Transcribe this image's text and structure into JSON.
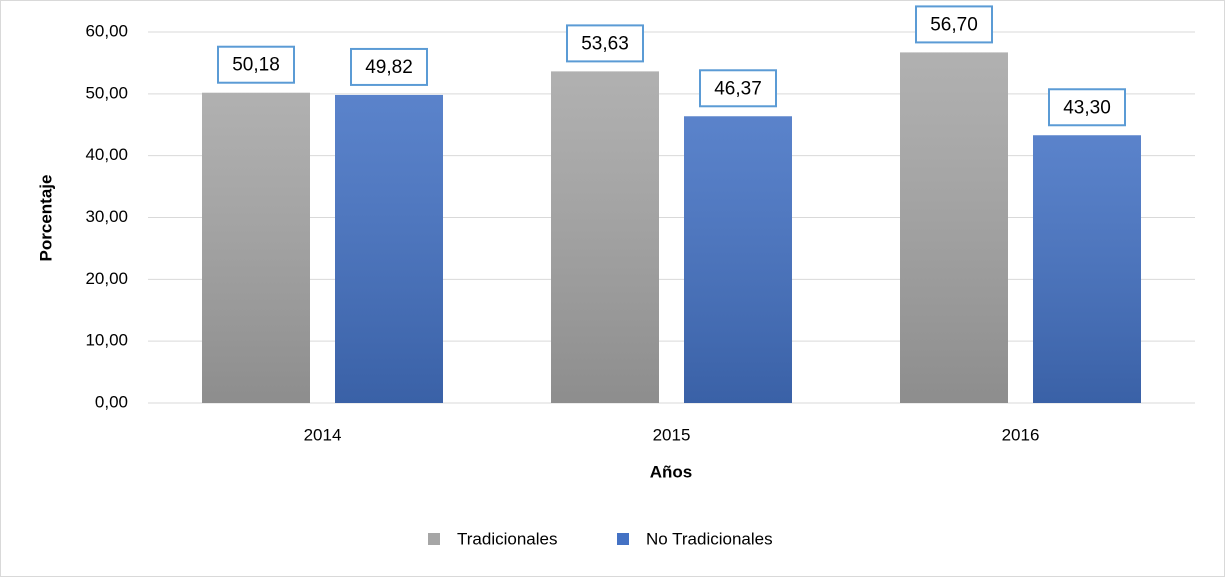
{
  "chart_data": {
    "type": "bar",
    "categories": [
      "2014",
      "2015",
      "2016"
    ],
    "series": [
      {
        "name": "Tradicionales",
        "color": "#a6a6a6",
        "values": [
          50.18,
          53.63,
          56.7
        ],
        "value_labels": [
          "50,18",
          "53,63",
          "56,70"
        ]
      },
      {
        "name": "No Tradicionales",
        "color": "#4472c4",
        "values": [
          49.82,
          46.37,
          43.3
        ],
        "value_labels": [
          "49,82",
          "46,37",
          "43,30"
        ]
      }
    ],
    "ylabel": "Porcentaje",
    "xlabel": "Años",
    "ylim": [
      0,
      60
    ],
    "yticks": [
      {
        "value": 0,
        "label": "0,00"
      },
      {
        "value": 10,
        "label": "10,00"
      },
      {
        "value": 20,
        "label": "20,00"
      },
      {
        "value": 30,
        "label": "30,00"
      },
      {
        "value": 40,
        "label": "40,00"
      },
      {
        "value": 50,
        "label": "50,00"
      },
      {
        "value": 60,
        "label": "60,00"
      }
    ],
    "grid": true,
    "legend": "bottom"
  }
}
